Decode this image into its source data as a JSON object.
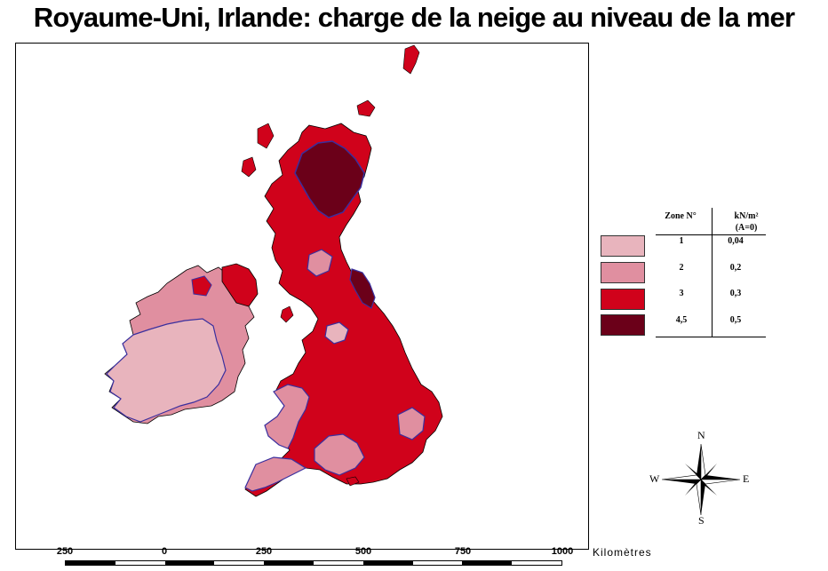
{
  "title": "Royaume-Uni, Irlande: charge de la neige au niveau de la mer",
  "colors": {
    "zone_1": "#e8b4bd",
    "zone_2": "#e08fa0",
    "zone_3": "#d0021b",
    "zone_45": "#6b0019",
    "zone_border": "#3a2f9e",
    "sea": "#ffffff"
  },
  "legend": {
    "col_zone": "Zone N°",
    "col_load": "kN/m²",
    "col_load_note": "(A=0)",
    "rows": [
      {
        "zone": "1",
        "value": "0,04",
        "color": "#e8b4bd"
      },
      {
        "zone": "2",
        "value": "0,2",
        "color": "#e08fa0"
      },
      {
        "zone": "3",
        "value": "0,3",
        "color": "#d0021b"
      },
      {
        "zone": "4,5",
        "value": "0,5",
        "color": "#6b0019"
      }
    ]
  },
  "compass": {
    "n": "N",
    "s": "S",
    "e": "E",
    "w": "W",
    "icon": "compass-rose-icon"
  },
  "scale": {
    "ticks": [
      "250",
      "0",
      "250",
      "500",
      "750",
      "1000"
    ],
    "unit": "Kilomètres"
  }
}
